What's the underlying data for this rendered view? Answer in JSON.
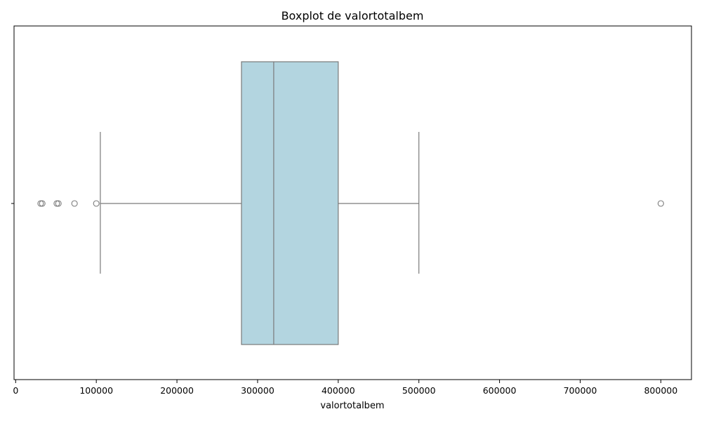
{
  "chart_data": {
    "type": "boxplot",
    "title": "Boxplot de valortotalbem",
    "xlabel": "valortotalbem",
    "ylabel": "",
    "xlim": [
      -2000,
      838000
    ],
    "xticks": [
      0,
      100000,
      200000,
      300000,
      400000,
      500000,
      600000,
      700000,
      800000
    ],
    "xtick_labels": [
      "0",
      "100000",
      "200000",
      "300000",
      "400000",
      "500000",
      "600000",
      "700000",
      "800000"
    ],
    "grid": false,
    "box": {
      "whisker_low": 105000,
      "q1": 280000,
      "median": 320000,
      "q3": 400000,
      "whisker_high": 500000
    },
    "outliers": [
      31000,
      33000,
      51000,
      53000,
      73000,
      100000,
      800000
    ],
    "colors": {
      "box_fill": "#b3d5e0",
      "lines": "#7a7a7a",
      "spine": "#000000"
    }
  }
}
